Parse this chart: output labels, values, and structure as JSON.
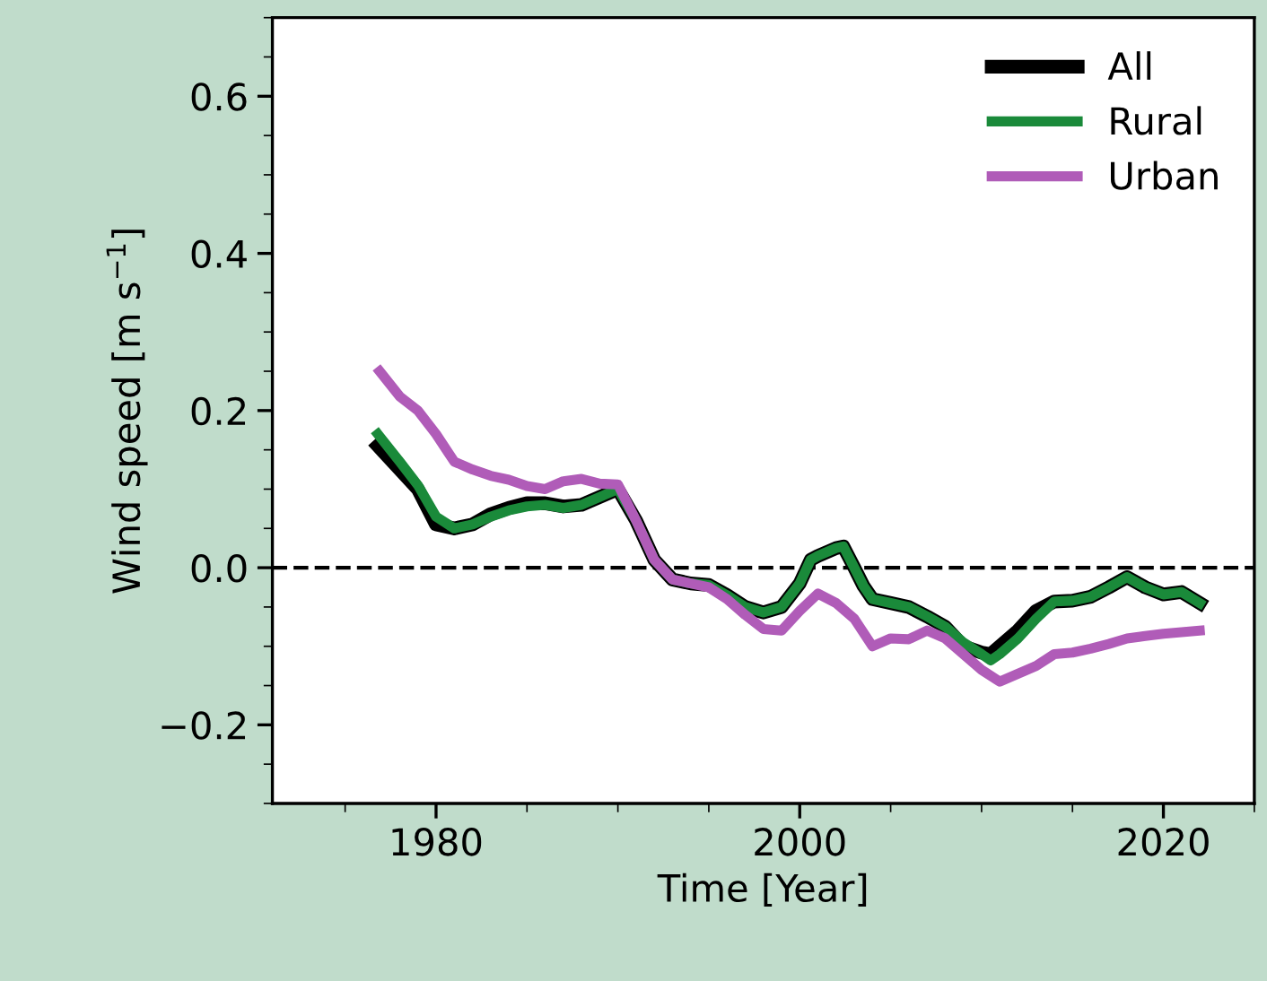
{
  "chart_data": {
    "type": "line",
    "xlabel": "Time [Year]",
    "ylabel": "Wind speed [m s$^{−1}$]",
    "xlim": [
      1971,
      2025
    ],
    "xticks": [
      1980,
      2000,
      2020
    ],
    "ylim": [
      -0.3,
      0.7
    ],
    "yticks": [
      {
        "value": -0.2,
        "label": "−0.2"
      },
      {
        "value": 0.0,
        "label": "0.0"
      },
      0.2,
      0.4,
      0.6
    ],
    "legend": "top right",
    "grid": false,
    "line_style": "solid",
    "marker": "none",
    "ref_lines": [
      {
        "axis": "y",
        "value": 0,
        "color": "#000000",
        "line_style": "dashed"
      }
    ],
    "series": [
      {
        "name": "All",
        "color": "#000000",
        "x": [
          1976.8,
          1978,
          1979,
          1980,
          1981,
          1982,
          1983,
          1984,
          1985,
          1986,
          1987,
          1988,
          1989,
          1990,
          1991,
          1992,
          1993,
          1994,
          1995,
          1996,
          1997,
          1998,
          1999,
          2000,
          2000.6,
          2001,
          2002,
          2002.4,
          2003,
          2003.5,
          2004,
          2005,
          2006,
          2007,
          2008,
          2009,
          2010,
          2010.5,
          2011,
          2012,
          2013,
          2014,
          2015,
          2016,
          2017,
          2018,
          2019,
          2020,
          2021,
          2022
        ],
        "values": [
          0.155,
          0.125,
          0.1,
          0.055,
          0.05,
          0.055,
          0.068,
          0.076,
          0.082,
          0.082,
          0.078,
          0.08,
          0.09,
          0.1,
          0.06,
          0.01,
          -0.015,
          -0.02,
          -0.022,
          -0.035,
          -0.05,
          -0.057,
          -0.05,
          -0.02,
          0.01,
          0.015,
          0.025,
          0.027,
          0.0,
          -0.023,
          -0.04,
          -0.045,
          -0.05,
          -0.062,
          -0.075,
          -0.1,
          -0.108,
          -0.11,
          -0.1,
          -0.08,
          -0.055,
          -0.043,
          -0.042,
          -0.037,
          -0.025,
          -0.012,
          -0.025,
          -0.034,
          -0.031,
          -0.045
        ]
      },
      {
        "name": "Rural",
        "color": "#1a8a3a",
        "x": [
          1976.8,
          1978,
          1979,
          1980,
          1981,
          1982,
          1983,
          1984,
          1985,
          1986,
          1987,
          1988,
          1989,
          1990,
          1991,
          1992,
          1993,
          1994,
          1995,
          1996,
          1997,
          1998,
          1999,
          2000,
          2000.6,
          2001,
          2002,
          2002.4,
          2003,
          2003.5,
          2004,
          2005,
          2006,
          2007,
          2008,
          2009,
          2010,
          2010.5,
          2011,
          2012,
          2013,
          2014,
          2015,
          2016,
          2017,
          2018,
          2019,
          2020,
          2021,
          2022
        ],
        "values": [
          0.17,
          0.135,
          0.105,
          0.065,
          0.05,
          0.055,
          0.065,
          0.073,
          0.078,
          0.08,
          0.076,
          0.08,
          0.09,
          0.1,
          0.06,
          0.01,
          -0.015,
          -0.02,
          -0.022,
          -0.035,
          -0.05,
          -0.057,
          -0.05,
          -0.02,
          0.01,
          0.015,
          0.025,
          0.027,
          0.0,
          -0.023,
          -0.04,
          -0.045,
          -0.05,
          -0.062,
          -0.075,
          -0.095,
          -0.11,
          -0.118,
          -0.11,
          -0.09,
          -0.065,
          -0.043,
          -0.042,
          -0.037,
          -0.025,
          -0.012,
          -0.025,
          -0.034,
          -0.031,
          -0.045
        ]
      },
      {
        "name": "Urban",
        "color": "#b05cb8",
        "x": [
          1976.9,
          1978,
          1979,
          1980,
          1981,
          1982,
          1983,
          1984,
          1985,
          1986,
          1987,
          1988,
          1989,
          1990,
          1991,
          1992,
          1993,
          1994,
          1995,
          1996,
          1997,
          1998,
          1999,
          2000,
          2001,
          2002,
          2003,
          2004,
          2005,
          2006,
          2007,
          2008,
          2009,
          2010,
          2011,
          2012,
          2013,
          2014,
          2015,
          2016,
          2017,
          2018,
          2019,
          2020,
          2021,
          2022
        ],
        "values": [
          0.25,
          0.218,
          0.2,
          0.17,
          0.135,
          0.125,
          0.117,
          0.112,
          0.104,
          0.1,
          0.11,
          0.113,
          0.107,
          0.106,
          0.06,
          0.01,
          -0.015,
          -0.02,
          -0.025,
          -0.04,
          -0.06,
          -0.078,
          -0.08,
          -0.055,
          -0.033,
          -0.045,
          -0.065,
          -0.1,
          -0.09,
          -0.091,
          -0.08,
          -0.09,
          -0.11,
          -0.13,
          -0.145,
          -0.135,
          -0.125,
          -0.11,
          -0.108,
          -0.103,
          -0.097,
          -0.09,
          -0.087,
          -0.084,
          -0.082,
          -0.08
        ]
      }
    ]
  }
}
